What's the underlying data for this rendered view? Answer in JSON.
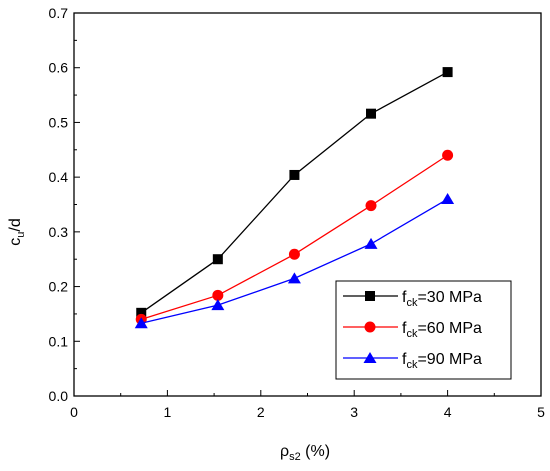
{
  "chart_data": {
    "type": "line",
    "xlabel": {
      "main": "ρ",
      "sub": "s2",
      "rest": " (%)"
    },
    "ylabel": {
      "main": "c",
      "sub": "u",
      "rest": "/d"
    },
    "xlim": [
      0,
      5
    ],
    "ylim": [
      0,
      0.7
    ],
    "xticks": [
      "0",
      "1",
      "2",
      "3",
      "4",
      "5"
    ],
    "yticks": [
      "0.0",
      "0.1",
      "0.2",
      "0.3",
      "0.4",
      "0.5",
      "0.6",
      "0.7"
    ],
    "grid": false,
    "legend_position": "bottom-right",
    "x": [
      0.72,
      1.54,
      2.36,
      3.18,
      4.0
    ],
    "series": [
      {
        "name": {
          "main": "f",
          "sub": "ck",
          "rest": "=30 MPa"
        },
        "values": [
          0.152,
          0.25,
          0.404,
          0.516,
          0.592
        ],
        "color": "#000000",
        "marker": "square"
      },
      {
        "name": {
          "main": "f",
          "sub": "ck",
          "rest": "=60 MPa"
        },
        "values": [
          0.14,
          0.184,
          0.259,
          0.348,
          0.44
        ],
        "color": "#ff0000",
        "marker": "circle"
      },
      {
        "name": {
          "main": "f",
          "sub": "ck",
          "rest": "=90 MPa"
        },
        "values": [
          0.133,
          0.166,
          0.215,
          0.278,
          0.36
        ],
        "color": "#0000ff",
        "marker": "triangle"
      }
    ]
  }
}
